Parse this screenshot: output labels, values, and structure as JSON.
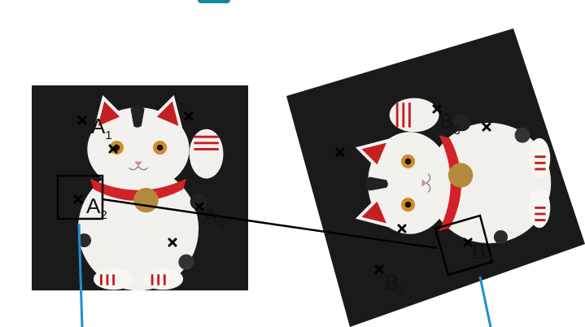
{
  "colors": {
    "photo_bg": "#1a1a1a",
    "cat_body": "#f2f0ec",
    "ear_red": "#c41f22",
    "bib_red": "#d3212a",
    "bell_gold": "#b48a3c",
    "marker": "#000000",
    "guide_line": "#1f8fcf",
    "title_accent": "#0f8a9a"
  },
  "left_image": {
    "points": [
      {
        "letter": "A",
        "sub": "1"
      },
      {
        "letter": "A",
        "sub": "2"
      },
      {
        "letter": "A",
        "sub": "3"
      }
    ]
  },
  "right_image": {
    "points": [
      {
        "letter": "B",
        "sub": "1"
      },
      {
        "letter": "B",
        "sub": "2"
      },
      {
        "letter": "B",
        "sub": "3"
      }
    ]
  },
  "icons": [
    "x-marker-icon"
  ]
}
